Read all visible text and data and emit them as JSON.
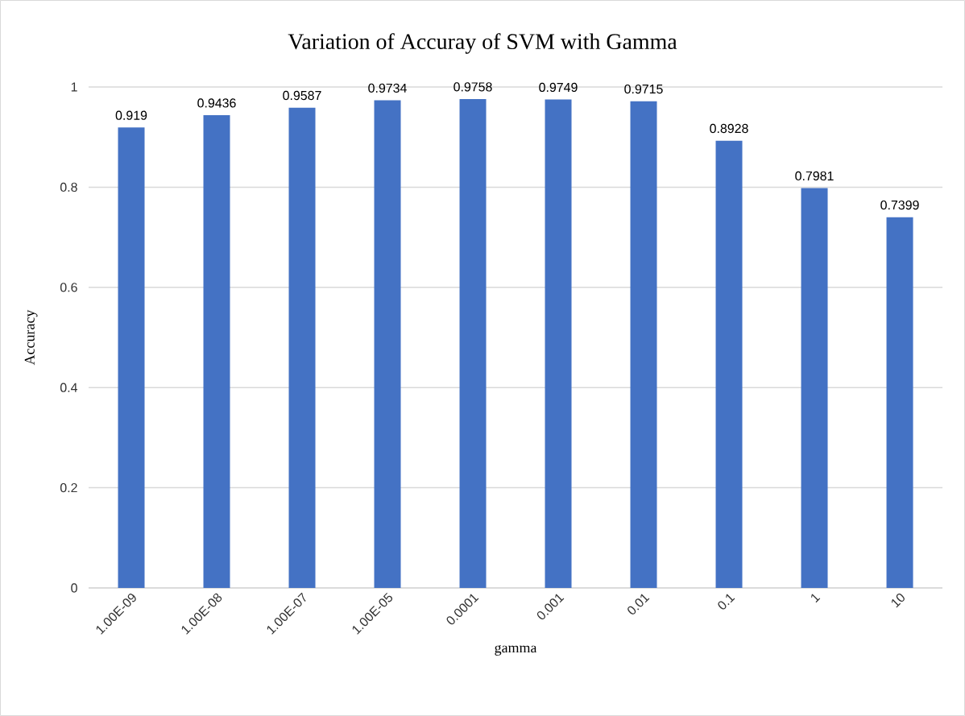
{
  "chart_data": {
    "type": "bar",
    "title": "Variation of Accuray of SVM with Gamma",
    "xlabel": "gamma",
    "ylabel": "Accuracy",
    "categories": [
      "1.00E-09",
      "1.00E-08",
      "1.00E-07",
      "1.00E-05",
      "0.0001",
      "0.001",
      "0.01",
      "0.1",
      "1",
      "10"
    ],
    "values": [
      0.919,
      0.9436,
      0.9587,
      0.9734,
      0.9758,
      0.9749,
      0.9715,
      0.8928,
      0.7981,
      0.7399
    ],
    "color": "#4472c4",
    "ylim": [
      0,
      1
    ],
    "yticks": [
      0,
      0.2,
      0.4,
      0.6,
      0.8,
      1
    ],
    "grid": "y",
    "data_labels": true
  }
}
